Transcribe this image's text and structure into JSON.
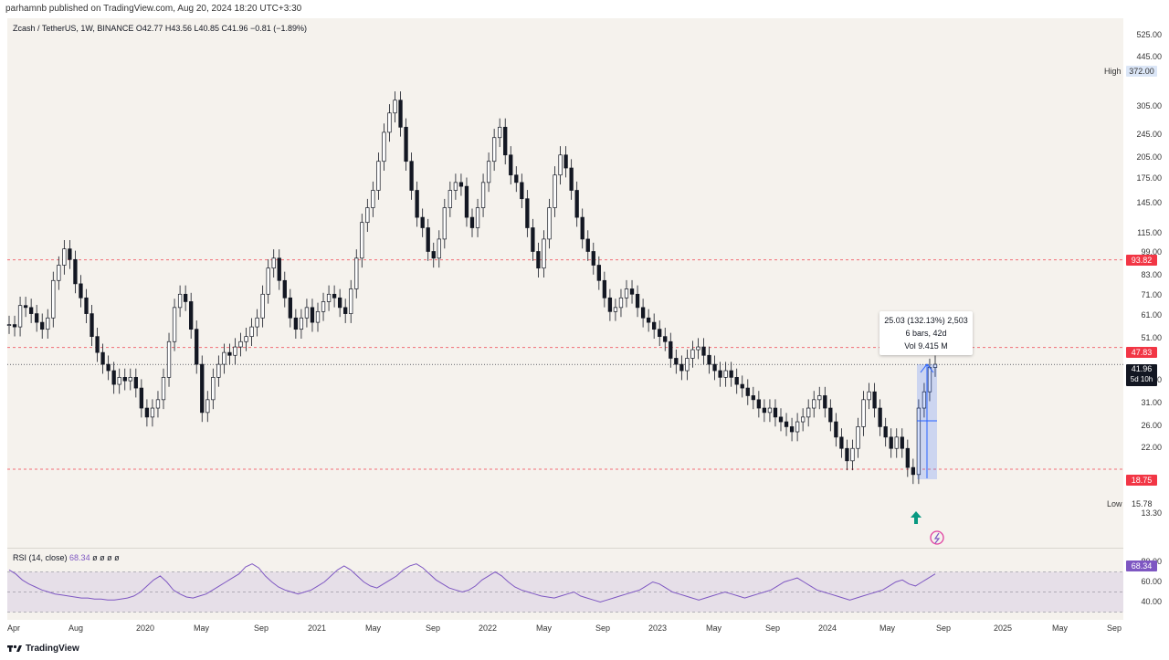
{
  "header": {
    "published": "parhamnb published on TradingView.com, Aug 20, 2024 18:20 UTC+3:30"
  },
  "footer": {
    "brand": "TradingView"
  },
  "colors": {
    "up": "#131722",
    "down": "#131722",
    "rsi": "#7e57c2",
    "level_line": "#f23645",
    "measure": "#2962ff"
  },
  "chart_data": [
    {
      "type": "candlestick",
      "title": "Zcash / TetherUS, 1W, BINANCE",
      "ohlc_label": "O42.77 H43.56 L40.85 C41.96 −0.81 (−1.89%)",
      "y_scale": "log",
      "y_ticks": [
        "525.00",
        "445.00",
        "305.00",
        "245.00",
        "205.00",
        "175.00",
        "145.00",
        "115.00",
        "99.00",
        "83.00",
        "71.00",
        "61.00",
        "51.00",
        "37.00",
        "31.00",
        "26.00",
        "22.00",
        "13.30"
      ],
      "x_ticks": [
        "Apr",
        "Aug",
        "2020",
        "May",
        "Sep",
        "2021",
        "May",
        "Sep",
        "2022",
        "May",
        "Sep",
        "2023",
        "May",
        "Sep",
        "2024",
        "May",
        "Sep",
        "2025",
        "May",
        "Sep"
      ],
      "price_levels": [
        {
          "value": "93.82",
          "color": "#f23645"
        },
        {
          "value": "47.83",
          "color": "#f23645"
        },
        {
          "value": "18.75",
          "color": "#f23645"
        }
      ],
      "current_price": {
        "value": "41.96",
        "countdown": "5d 10h"
      },
      "high": {
        "label": "High",
        "value": "372.00"
      },
      "low": {
        "label": "Low",
        "value": "15.78"
      },
      "measure": {
        "line1": "25.03 (132.13%) 2,503",
        "line2": "6 bars, 42d",
        "line3": "Vol 9.415 M"
      },
      "closes": [
        57,
        56,
        66,
        65,
        62,
        58,
        55,
        60,
        80,
        90,
        102,
        94,
        78,
        70,
        62,
        52,
        46,
        42,
        40,
        36,
        38,
        37,
        38,
        35,
        30,
        28,
        30,
        32,
        38,
        50,
        65,
        72,
        68,
        55,
        42,
        29,
        32,
        38,
        42,
        46,
        45,
        48,
        50,
        52,
        56,
        60,
        72,
        88,
        95,
        80,
        70,
        60,
        55,
        60,
        65,
        58,
        63,
        68,
        72,
        70,
        65,
        62,
        75,
        95,
        125,
        140,
        160,
        200,
        250,
        290,
        320,
        260,
        200,
        160,
        130,
        120,
        100,
        95,
        110,
        140,
        160,
        170,
        165,
        130,
        120,
        140,
        170,
        200,
        240,
        260,
        210,
        180,
        170,
        150,
        120,
        100,
        88,
        110,
        140,
        180,
        210,
        190,
        160,
        130,
        110,
        100,
        90,
        80,
        70,
        63,
        65,
        70,
        75,
        72,
        65,
        60,
        58,
        55,
        52,
        50,
        44,
        42,
        40,
        44,
        47,
        48,
        45,
        42,
        40,
        38,
        40,
        38,
        36,
        35,
        33,
        32,
        30,
        29,
        30,
        28,
        27,
        26,
        25,
        27,
        28,
        30,
        32,
        33,
        30,
        27,
        24,
        22,
        20,
        22,
        26,
        32,
        34,
        30,
        26,
        24,
        22,
        24,
        22,
        19,
        18,
        30,
        34,
        41,
        42
      ]
    },
    {
      "type": "line",
      "title": "RSI (14, close)",
      "last_value": "68.34",
      "extra": "ø ø ø ø",
      "y_ticks": [
        "80.00",
        "60.00",
        "40.00"
      ],
      "ylim": [
        25,
        85
      ],
      "values": [
        72,
        68,
        62,
        58,
        55,
        52,
        50,
        48,
        47,
        46,
        45,
        44,
        44,
        43,
        43,
        42,
        42,
        43,
        44,
        46,
        50,
        56,
        62,
        66,
        60,
        52,
        48,
        45,
        44,
        46,
        48,
        52,
        56,
        60,
        64,
        68,
        75,
        78,
        74,
        66,
        60,
        55,
        52,
        50,
        48,
        50,
        52,
        56,
        60,
        66,
        72,
        76,
        72,
        66,
        60,
        56,
        54,
        58,
        62,
        66,
        72,
        76,
        78,
        74,
        68,
        62,
        58,
        54,
        52,
        50,
        52,
        56,
        62,
        66,
        70,
        66,
        60,
        55,
        52,
        50,
        48,
        46,
        45,
        44,
        46,
        48,
        50,
        46,
        44,
        42,
        40,
        42,
        44,
        46,
        48,
        50,
        52,
        56,
        60,
        58,
        54,
        50,
        48,
        46,
        44,
        42,
        44,
        46,
        48,
        50,
        48,
        46,
        44,
        46,
        48,
        50,
        52,
        56,
        60,
        62,
        64,
        60,
        56,
        52,
        50,
        48,
        46,
        44,
        42,
        44,
        46,
        48,
        50,
        52,
        56,
        60,
        62,
        58,
        56,
        60,
        64,
        68
      ]
    }
  ]
}
